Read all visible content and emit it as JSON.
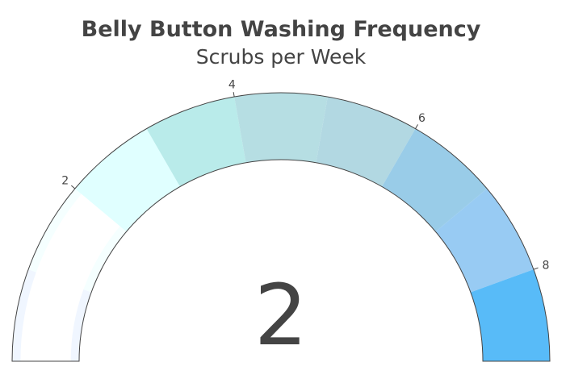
{
  "chart_data": {
    "type": "gauge",
    "title": "Belly Button Washing Frequency",
    "subtitle": "Scrubs per Week",
    "value": 2,
    "range": [
      0,
      9
    ],
    "tick_labels": [
      {
        "value": 2,
        "label": "2"
      },
      {
        "value": 4,
        "label": "4"
      },
      {
        "value": 6,
        "label": "6"
      },
      {
        "value": 8,
        "label": "8"
      }
    ],
    "steps": [
      {
        "range": [
          0,
          1
        ],
        "color": "#f0f6ff"
      },
      {
        "range": [
          1,
          2
        ],
        "color": "#f5ffff"
      },
      {
        "range": [
          2,
          3
        ],
        "color": "#e0ffff"
      },
      {
        "range": [
          3,
          4
        ],
        "color": "#b9ebea"
      },
      {
        "range": [
          4,
          5
        ],
        "color": "#b6dee3"
      },
      {
        "range": [
          5,
          6
        ],
        "color": "#b2d8e2"
      },
      {
        "range": [
          6,
          7
        ],
        "color": "#99cce8"
      },
      {
        "range": [
          7,
          8
        ],
        "color": "#98cbf3"
      },
      {
        "range": [
          8,
          9
        ],
        "color": "#58bbf8"
      }
    ],
    "bar": {
      "value": 2,
      "color": "#ffffff"
    }
  }
}
